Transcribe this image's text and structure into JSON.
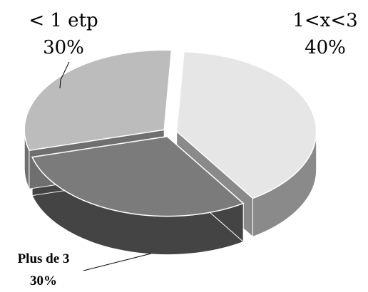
{
  "chart_data": {
    "type": "pie",
    "style": "3d-exploded",
    "slices": [
      {
        "category": "1<x<3",
        "percent_label": "40%",
        "value": 40,
        "color": "#e6e6e6",
        "side_color": "#8a8a8a"
      },
      {
        "category": "Plus de 3",
        "percent_label": "30%",
        "value": 30,
        "color": "#7b7b7b",
        "side_color": "#444444"
      },
      {
        "category": "< 1 etp",
        "percent_label": "30%",
        "value": 30,
        "color": "#bcbcbc",
        "side_color": "#6f6f6f"
      }
    ],
    "label_placement": "outside-with-leader-lines",
    "legend": "none"
  }
}
